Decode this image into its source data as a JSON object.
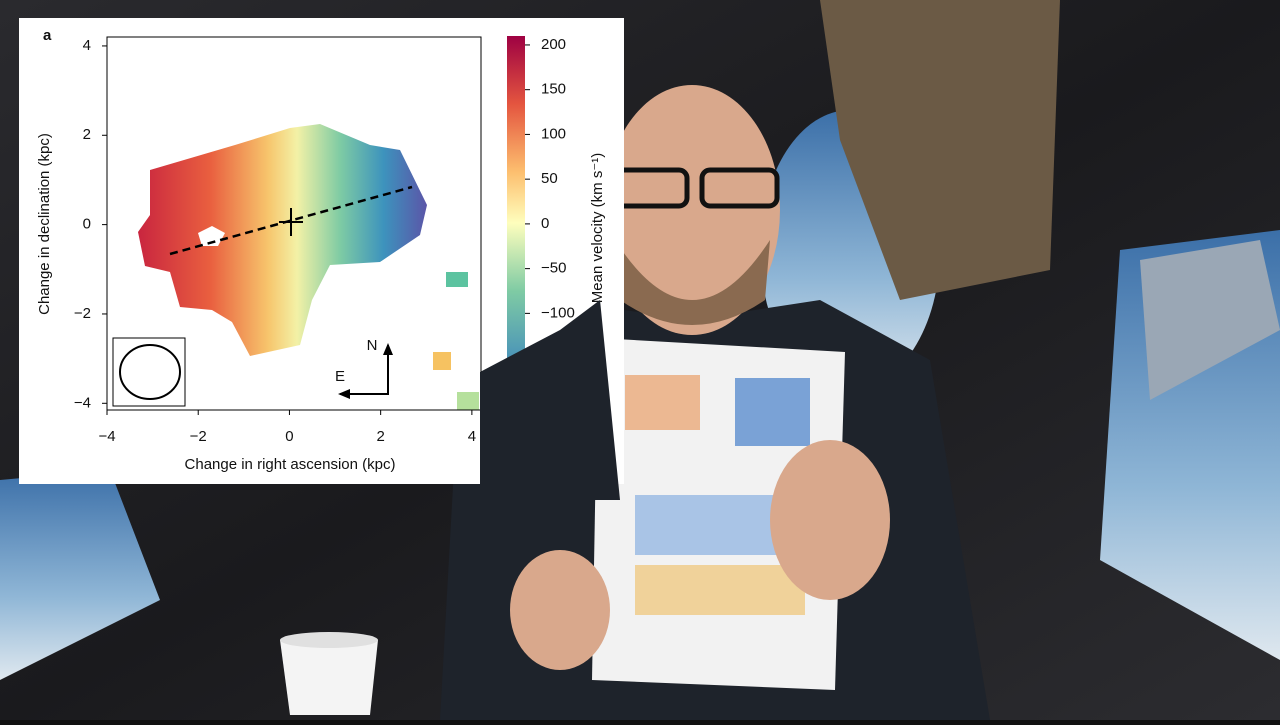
{
  "chart_data": {
    "type": "map",
    "panel_label": "a",
    "xlabel": "Change in right ascension (kpc)",
    "ylabel": "Change in declination (kpc)",
    "colorbar_label": "Mean velocity (km s⁻¹)",
    "xlim": [
      -4,
      4.2
    ],
    "ylim": [
      -4.15,
      4.2
    ],
    "xticks": [
      {
        "value": -4,
        "label": "−4"
      },
      {
        "value": -2,
        "label": "−2"
      },
      0,
      2,
      4
    ],
    "yticks": [
      4,
      2,
      0,
      {
        "value": -2,
        "label": "−2"
      },
      {
        "value": -4,
        "label": "−4"
      }
    ],
    "clim": [
      -170,
      210
    ],
    "cticks": [
      200,
      150,
      100,
      50,
      0,
      {
        "value": -50,
        "label": "−50"
      },
      {
        "value": -100,
        "label": "−100"
      }
    ],
    "compass": [
      "N",
      "E"
    ]
  }
}
